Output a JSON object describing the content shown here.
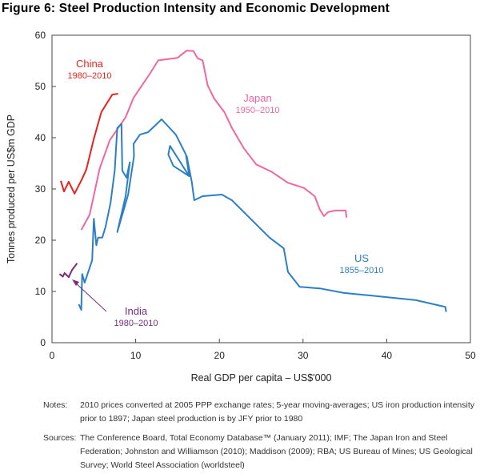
{
  "title": "Figure 6: Steel Production Intensity and Economic Development",
  "chart_data": {
    "type": "line",
    "title": "Figure 6: Steel Production Intensity and Economic Development",
    "xlabel": "Real GDP per capita – US$'000",
    "ylabel": "Tonnes produced per US$m GDP",
    "xlim": [
      0,
      50
    ],
    "ylim": [
      0,
      60
    ],
    "xticks": [
      "0",
      "10",
      "20",
      "30",
      "40",
      "50"
    ],
    "yticks": [
      "0",
      "10",
      "20",
      "30",
      "40",
      "50",
      "60"
    ],
    "grid": false,
    "series": [
      {
        "name": "China",
        "period": "1980–2010",
        "color": "#e8231f",
        "x": [
          1.05,
          1.43,
          2.0,
          2.7,
          3.6,
          4.1,
          5.0,
          5.9,
          7.2,
          7.9
        ],
        "y": [
          31.6,
          29.5,
          31.4,
          29.1,
          32,
          33.8,
          39.8,
          45,
          48.4,
          48.6
        ]
      },
      {
        "name": "Japan",
        "period": "1950–2010",
        "color": "#f0679e",
        "x": [
          3.5,
          4.5,
          5.7,
          6.9,
          8.8,
          9.75,
          11.7,
          12.7,
          15,
          16.1,
          16.9,
          17.4,
          18,
          18.6,
          19.4,
          20.6,
          21.5,
          22.9,
          24.4,
          26.3,
          28.2,
          30.1,
          31.4,
          32,
          32.5,
          33,
          33.9,
          35.1,
          35.2
        ],
        "y": [
          22,
          25,
          34,
          39.5,
          44,
          47.8,
          52.5,
          55.1,
          55.6,
          57,
          56.9,
          55.5,
          55.1,
          50.2,
          47.6,
          45,
          41.9,
          38,
          34.8,
          33.3,
          31.2,
          30.2,
          28.6,
          26,
          24.7,
          25.5,
          25.8,
          25.8,
          24.4
        ]
      },
      {
        "name": "US",
        "period": "1855–2010",
        "color": "#2d7fc5",
        "x": [
          3.2,
          3.5,
          3.6,
          3.9,
          4.8,
          5.0,
          5.3,
          5.5,
          6.0,
          6.4,
          7.0,
          7.5,
          7.8,
          8.3,
          8.4,
          8.9,
          9.3,
          8.8,
          7.8,
          9.1,
          9.8,
          9.75,
          10.5,
          11.5,
          13.1,
          14.8,
          16,
          16.4,
          14.1,
          13.9,
          14.5,
          16.4,
          16.1,
          16.7,
          17,
          18,
          20.3,
          21.5,
          23.1,
          24.4,
          26,
          27.7,
          28.2,
          29.6,
          32,
          34.9,
          38.7,
          43.5,
          46.4,
          47,
          47.1
        ],
        "y": [
          7.5,
          6.4,
          13.4,
          11.7,
          16.1,
          24.2,
          19,
          20.5,
          20.5,
          22.6,
          27.3,
          33.6,
          41.9,
          42.7,
          33.6,
          32.2,
          35.2,
          28.6,
          21.6,
          28.9,
          36.4,
          38.8,
          40.6,
          41.1,
          43.6,
          40.6,
          36.7,
          32.5,
          38.4,
          36.7,
          34.5,
          32.5,
          36.4,
          31.4,
          27.8,
          28.6,
          28.9,
          27.8,
          25.2,
          23.1,
          20.5,
          18.4,
          13.8,
          10.9,
          10.6,
          9.7,
          9.1,
          8.3,
          7.2,
          7,
          6
        ]
      },
      {
        "name": "India",
        "period": "1980–2010",
        "color": "#7b2a7d",
        "x": [
          0.9,
          1.3,
          1.5,
          2.0,
          2.4,
          3.0
        ],
        "y": [
          13.4,
          12.9,
          13.6,
          12.8,
          14.2,
          15.5
        ]
      }
    ]
  },
  "notes_label": "Notes:",
  "notes_text": "2010 prices converted at 2005 PPP exchange rates; 5-year moving-averages; US iron production intensity prior to 1897; Japan steel production is by JFY prior to 1980",
  "sources_label": "Sources:",
  "sources_text": "The Conference Board, Total Economy Database™ (January 2011); IMF; The Japan Iron and Steel Federation; Johnston and Williamson (2010); Maddison (2009); RBA; US Bureau of Mines; US Geological Survey; World Steel Association (worldsteel)"
}
